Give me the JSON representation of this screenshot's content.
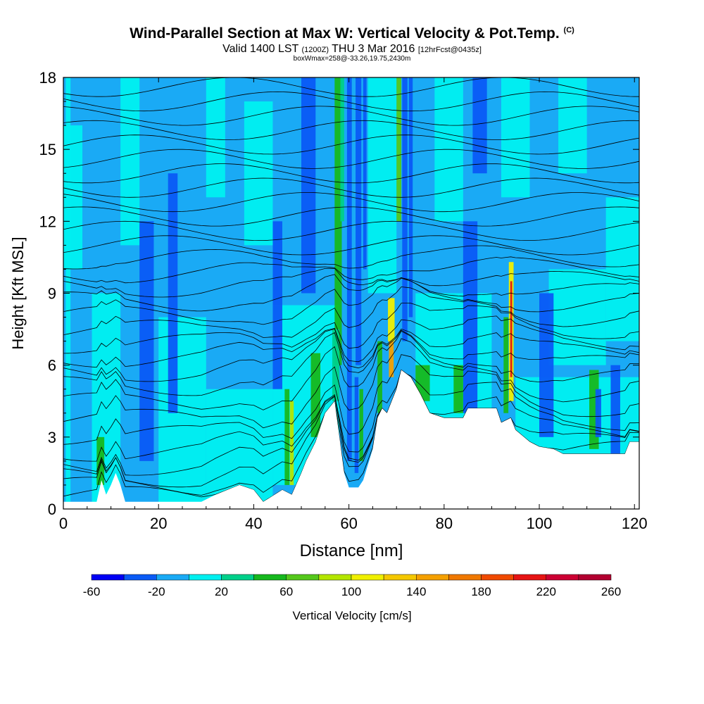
{
  "header": {
    "title": "Wind-Parallel Section at Max W: Vertical Velocity & Pot.Temp.",
    "title_copyright": "(C)",
    "valid_main": "Valid 1400 LST",
    "valid_utc": "(1200Z)",
    "valid_date": "THU 3 Mar 2016",
    "valid_fcst": "[12hrFcst@0435z]",
    "box_info": "boxWmax=258@-33.26,19.75,2430m"
  },
  "chart_data": {
    "type": "heatmap",
    "xlabel": "Distance [nm]",
    "ylabel": "Height [Kft MSL]",
    "xlim": [
      0,
      121
    ],
    "ylim": [
      0,
      18
    ],
    "x_ticks": [
      0,
      20,
      40,
      60,
      80,
      100,
      120
    ],
    "y_ticks": [
      0,
      3,
      6,
      9,
      12,
      15,
      18
    ],
    "colorbar": {
      "label": "Vertical Velocity [cm/s]",
      "tick_labels": [
        "-60",
        "-20",
        "20",
        "60",
        "100",
        "140",
        "180",
        "220",
        "260"
      ],
      "boundaries": [
        -60,
        -40,
        -20,
        0,
        20,
        40,
        60,
        80,
        100,
        120,
        140,
        160,
        180,
        200,
        220,
        240,
        260
      ],
      "colors": [
        "#0000f5",
        "#0a5af5",
        "#1aaaf5",
        "#00f0f0",
        "#00d08a",
        "#16b81e",
        "#55c81c",
        "#b4e600",
        "#f0f000",
        "#f5c800",
        "#f5a000",
        "#f07800",
        "#f04a00",
        "#e61414",
        "#cc0033",
        "#b20030"
      ]
    },
    "terrain": [
      {
        "x": 0,
        "h": 0.3
      },
      {
        "x": 7,
        "h": 0.3
      },
      {
        "x": 8,
        "h": 1.2
      },
      {
        "x": 9,
        "h": 0.6
      },
      {
        "x": 10,
        "h": 1.0
      },
      {
        "x": 11,
        "h": 1.5
      },
      {
        "x": 12,
        "h": 1.0
      },
      {
        "x": 13,
        "h": 0.3
      },
      {
        "x": 29,
        "h": 0.3
      },
      {
        "x": 32,
        "h": 0.6
      },
      {
        "x": 37,
        "h": 1.0
      },
      {
        "x": 40,
        "h": 0.8
      },
      {
        "x": 42,
        "h": 0.3
      },
      {
        "x": 46,
        "h": 0.8
      },
      {
        "x": 48,
        "h": 0.6
      },
      {
        "x": 50,
        "h": 1.5
      },
      {
        "x": 51,
        "h": 2.0
      },
      {
        "x": 53,
        "h": 2.8
      },
      {
        "x": 55,
        "h": 4.0
      },
      {
        "x": 57,
        "h": 4.5
      },
      {
        "x": 58,
        "h": 3.0
      },
      {
        "x": 59,
        "h": 1.5
      },
      {
        "x": 60,
        "h": 0.9
      },
      {
        "x": 62,
        "h": 0.9
      },
      {
        "x": 63,
        "h": 1.2
      },
      {
        "x": 65,
        "h": 2.5
      },
      {
        "x": 66,
        "h": 3.8
      },
      {
        "x": 67,
        "h": 4.2
      },
      {
        "x": 68,
        "h": 4.0
      },
      {
        "x": 70,
        "h": 5.0
      },
      {
        "x": 71,
        "h": 5.8
      },
      {
        "x": 73,
        "h": 5.5
      },
      {
        "x": 75,
        "h": 4.8
      },
      {
        "x": 77,
        "h": 4.0
      },
      {
        "x": 80,
        "h": 3.8
      },
      {
        "x": 84,
        "h": 3.8
      },
      {
        "x": 85,
        "h": 4.2
      },
      {
        "x": 91,
        "h": 4.2
      },
      {
        "x": 92,
        "h": 3.6
      },
      {
        "x": 94,
        "h": 3.8
      },
      {
        "x": 95,
        "h": 3.3
      },
      {
        "x": 98,
        "h": 2.8
      },
      {
        "x": 100,
        "h": 2.6
      },
      {
        "x": 103,
        "h": 2.5
      },
      {
        "x": 105,
        "h": 2.3
      },
      {
        "x": 112,
        "h": 2.3
      },
      {
        "x": 118,
        "h": 2.3
      },
      {
        "x": 119,
        "h": 2.8
      },
      {
        "x": 121,
        "h": 2.8
      }
    ],
    "theta_levels": [
      0.3,
      0.7,
      1.1,
      1.6,
      2.2,
      2.9,
      3.6,
      4.3,
      5.0,
      5.6,
      6.2,
      6.8,
      7.4,
      8.0,
      8.6,
      9.2,
      9.8,
      10.4,
      11.0,
      11.6,
      12.2,
      12.8,
      13.4,
      14.0,
      14.6,
      15.2,
      15.8,
      16.4,
      17.0,
      17.6
    ]
  }
}
